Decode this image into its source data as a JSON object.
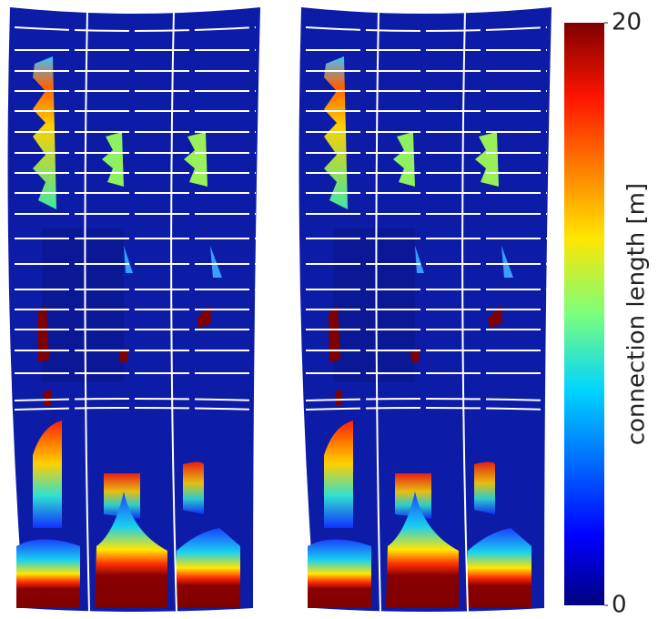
{
  "chart_data": {
    "type": "surface",
    "colorbar": {
      "label": "connection length [m]",
      "lim": [
        0,
        20
      ],
      "ticks": [
        0,
        20
      ]
    }
  }
}
